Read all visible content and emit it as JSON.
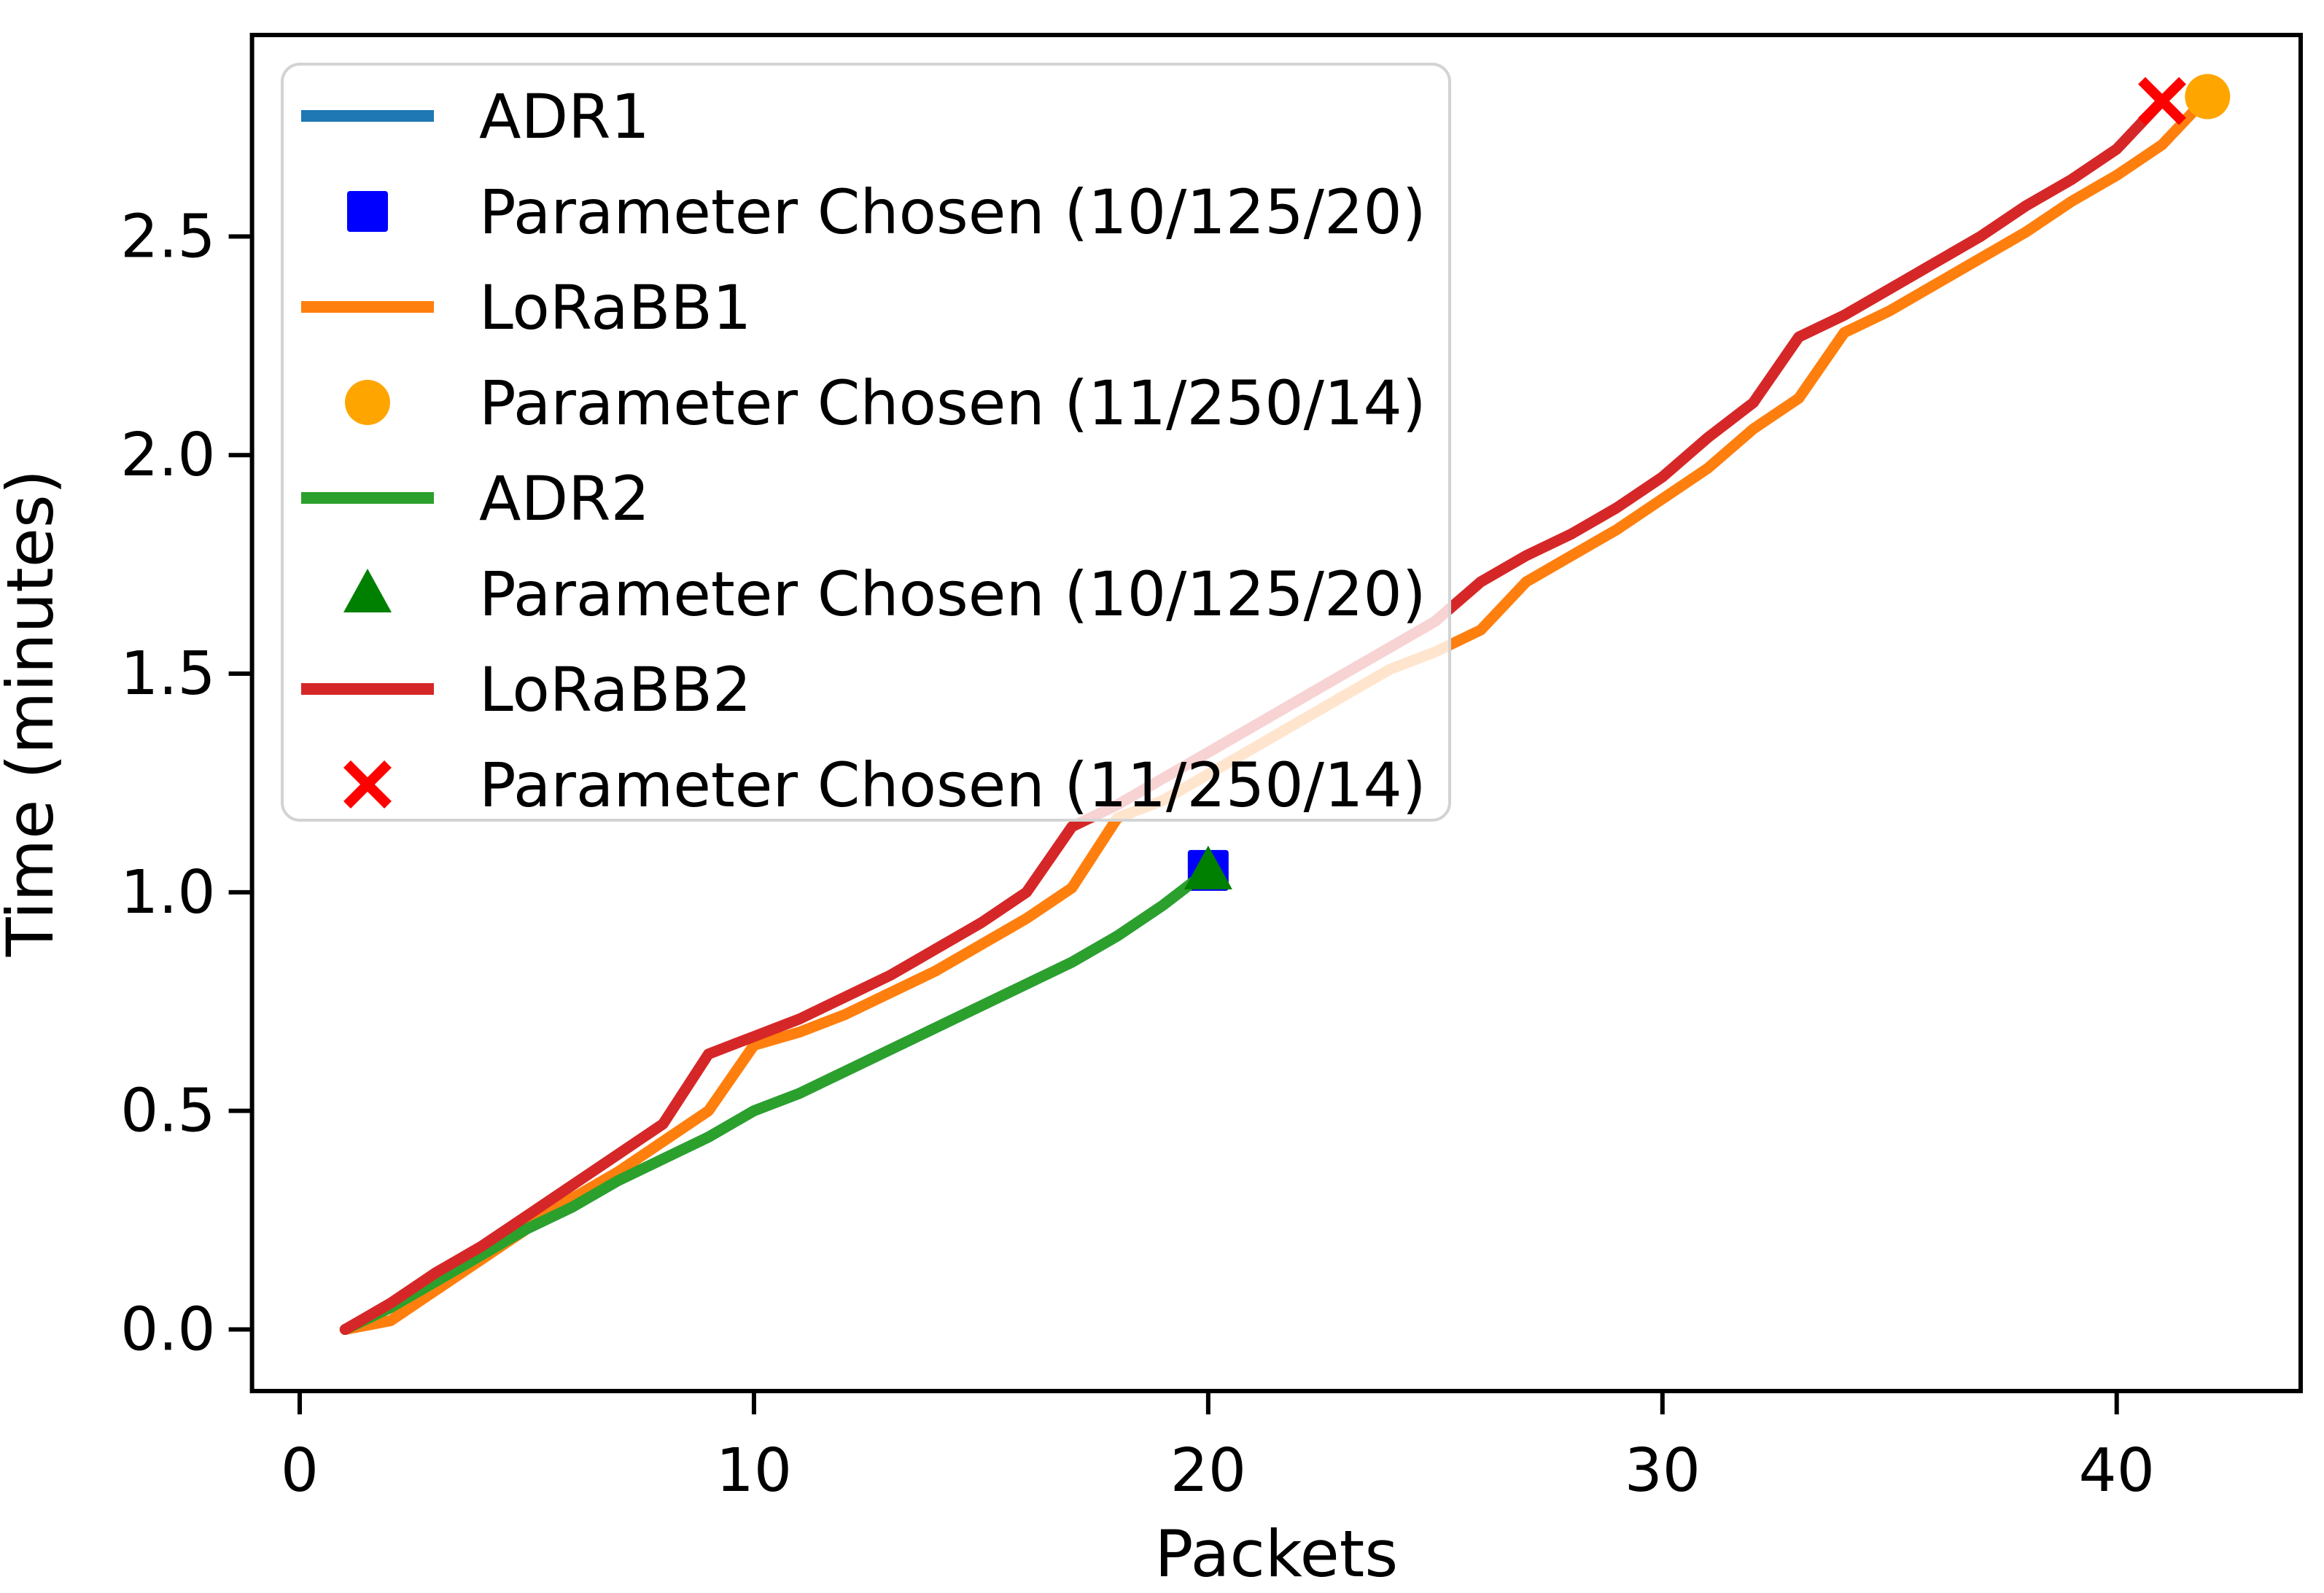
{
  "figure": {
    "background": "#ffffff",
    "axes_color": "#000000"
  },
  "chart_data": {
    "type": "line",
    "title": "",
    "xlabel": "Packets",
    "ylabel": "Time (minutes)",
    "xlim": [
      -1.05,
      44.05
    ],
    "ylim": [
      -0.141,
      2.961
    ],
    "xticks": [
      0,
      10,
      20,
      30,
      40
    ],
    "yticks": [
      0.0,
      0.5,
      1.0,
      1.5,
      2.0,
      2.5
    ],
    "grid": false,
    "legend_position": "upper left",
    "series": [
      {
        "name": "ADR1",
        "color": "#1f77b4",
        "x": [
          1,
          2,
          3,
          4,
          5,
          6,
          7,
          8,
          9,
          10,
          11,
          12,
          13,
          14,
          15,
          16,
          17,
          18,
          19,
          20
        ],
        "y": [
          0.0,
          0.05,
          0.11,
          0.17,
          0.23,
          0.28,
          0.34,
          0.39,
          0.44,
          0.5,
          0.54,
          0.59,
          0.64,
          0.69,
          0.74,
          0.79,
          0.84,
          0.9,
          0.97,
          1.05
        ],
        "marker": {
          "label": "Parameter Chosen (10/125/20)",
          "shape": "square",
          "color": "#0000ff",
          "x": 20,
          "y": 1.05
        }
      },
      {
        "name": "LoRaBB1",
        "color": "#ff7f0e",
        "x": [
          1,
          2,
          3,
          4,
          5,
          6,
          7,
          8,
          9,
          10,
          11,
          12,
          13,
          14,
          15,
          16,
          17,
          18,
          19,
          20,
          21,
          22,
          23,
          24,
          25,
          26,
          27,
          28,
          29,
          30,
          31,
          32,
          33,
          34,
          35,
          36,
          37,
          38,
          39,
          40,
          41,
          42
        ],
        "y": [
          0.0,
          0.02,
          0.09,
          0.16,
          0.23,
          0.3,
          0.36,
          0.43,
          0.5,
          0.65,
          0.68,
          0.72,
          0.77,
          0.82,
          0.88,
          0.94,
          1.01,
          1.17,
          1.21,
          1.27,
          1.33,
          1.39,
          1.45,
          1.51,
          1.55,
          1.6,
          1.71,
          1.77,
          1.83,
          1.9,
          1.97,
          2.06,
          2.13,
          2.28,
          2.33,
          2.39,
          2.45,
          2.51,
          2.58,
          2.64,
          2.71,
          2.82
        ],
        "marker": {
          "label": "Parameter Chosen (11/250/14)",
          "shape": "circle",
          "color": "#ffa500",
          "x": 42,
          "y": 2.82
        }
      },
      {
        "name": "ADR2",
        "color": "#2ca02c",
        "x": [
          1,
          2,
          3,
          4,
          5,
          6,
          7,
          8,
          9,
          10,
          11,
          12,
          13,
          14,
          15,
          16,
          17,
          18,
          19,
          20
        ],
        "y": [
          0.0,
          0.05,
          0.11,
          0.17,
          0.23,
          0.28,
          0.34,
          0.39,
          0.44,
          0.5,
          0.54,
          0.59,
          0.64,
          0.69,
          0.74,
          0.79,
          0.84,
          0.9,
          0.97,
          1.05
        ],
        "marker": {
          "label": "Parameter Chosen (10/125/20)",
          "shape": "triangle",
          "color": "#008000",
          "x": 20,
          "y": 1.05
        }
      },
      {
        "name": "LoRaBB2",
        "color": "#d62728",
        "x": [
          1,
          2,
          3,
          4,
          5,
          6,
          7,
          8,
          9,
          10,
          11,
          12,
          13,
          14,
          15,
          16,
          17,
          18,
          19,
          20,
          21,
          22,
          23,
          24,
          25,
          26,
          27,
          28,
          29,
          30,
          31,
          32,
          33,
          34,
          35,
          36,
          37,
          38,
          39,
          40,
          41
        ],
        "y": [
          0.0,
          0.06,
          0.13,
          0.19,
          0.26,
          0.33,
          0.4,
          0.47,
          0.63,
          0.67,
          0.71,
          0.76,
          0.81,
          0.87,
          0.93,
          1.0,
          1.15,
          1.2,
          1.26,
          1.32,
          1.38,
          1.44,
          1.5,
          1.56,
          1.62,
          1.71,
          1.77,
          1.82,
          1.88,
          1.95,
          2.04,
          2.12,
          2.27,
          2.32,
          2.38,
          2.44,
          2.5,
          2.57,
          2.63,
          2.7,
          2.81
        ],
        "marker": {
          "label": "Parameter Chosen (11/250/14)",
          "shape": "x",
          "color": "#ff0000",
          "x": 41,
          "y": 2.81
        }
      }
    ],
    "legend": [
      {
        "handle": "line",
        "color": "#1f77b4",
        "label": "ADR1"
      },
      {
        "handle": "square",
        "color": "#0000ff",
        "label": "Parameter Chosen (10/125/20)"
      },
      {
        "handle": "line",
        "color": "#ff7f0e",
        "label": "LoRaBB1"
      },
      {
        "handle": "circle",
        "color": "#ffa500",
        "label": "Parameter Chosen (11/250/14)"
      },
      {
        "handle": "line",
        "color": "#2ca02c",
        "label": "ADR2"
      },
      {
        "handle": "triangle",
        "color": "#008000",
        "label": "Parameter Chosen (10/125/20)"
      },
      {
        "handle": "line",
        "color": "#d62728",
        "label": "LoRaBB2"
      },
      {
        "handle": "x",
        "color": "#ff0000",
        "label": "Parameter Chosen (11/250/14)"
      }
    ]
  }
}
